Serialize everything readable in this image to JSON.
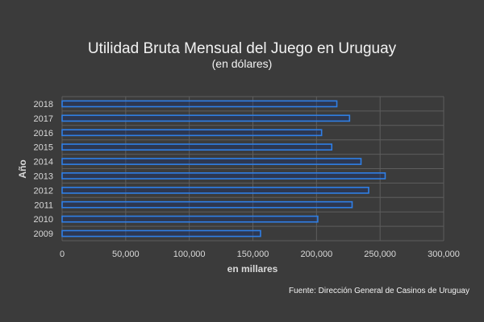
{
  "chart_data": {
    "type": "bar",
    "orientation": "horizontal",
    "title": "Utilidad Bruta Mensual del Juego en Uruguay",
    "subtitle": "(en dólares)",
    "xlabel": "en millares",
    "ylabel": "Año",
    "categories": [
      "2018",
      "2017",
      "2016",
      "2015",
      "2014",
      "2013",
      "2012",
      "2011",
      "2010",
      "2009"
    ],
    "values": [
      216000,
      226000,
      204000,
      212000,
      235000,
      254000,
      241000,
      228000,
      201000,
      156000
    ],
    "xlim": [
      0,
      300000
    ],
    "xticks": [
      0,
      50000,
      100000,
      150000,
      200000,
      250000,
      300000
    ],
    "xtick_labels": [
      "0",
      "50,000",
      "100,000",
      "150,000",
      "200,000",
      "250,000",
      "300,000"
    ],
    "grid": true,
    "legend": "none",
    "source": "Fuente: Dirección General de Casinos de Uruguay",
    "colors": {
      "background": "#3b3b3b",
      "bar_outline": "#2f7fe6",
      "text": "#d9d9d9"
    }
  }
}
